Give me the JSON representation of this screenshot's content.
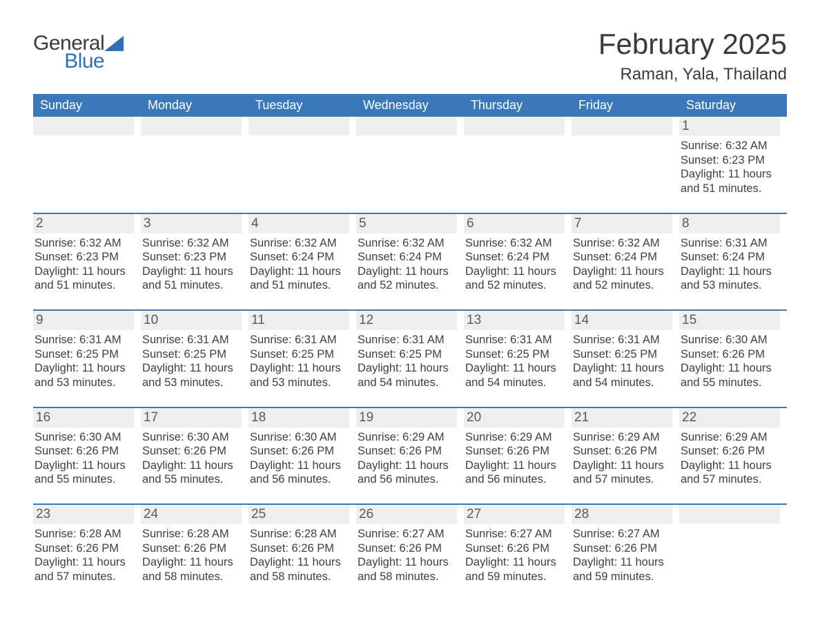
{
  "logo": {
    "word1": "General",
    "word2": "Blue"
  },
  "title": "February 2025",
  "location": "Raman, Yala, Thailand",
  "colors": {
    "header_bg": "#3b78b9",
    "header_text": "#ffffff",
    "daynum_bg": "#eeeeee",
    "text": "#3a3a3a",
    "accent": "#2e6fb5",
    "border": "#3b78b9"
  },
  "dow": [
    "Sunday",
    "Monday",
    "Tuesday",
    "Wednesday",
    "Thursday",
    "Friday",
    "Saturday"
  ],
  "weeks": [
    [
      {
        "n": "",
        "sunrise": "",
        "sunset": "",
        "daylight": ""
      },
      {
        "n": "",
        "sunrise": "",
        "sunset": "",
        "daylight": ""
      },
      {
        "n": "",
        "sunrise": "",
        "sunset": "",
        "daylight": ""
      },
      {
        "n": "",
        "sunrise": "",
        "sunset": "",
        "daylight": ""
      },
      {
        "n": "",
        "sunrise": "",
        "sunset": "",
        "daylight": ""
      },
      {
        "n": "",
        "sunrise": "",
        "sunset": "",
        "daylight": ""
      },
      {
        "n": "1",
        "sunrise": "Sunrise: 6:32 AM",
        "sunset": "Sunset: 6:23 PM",
        "daylight": "Daylight: 11 hours and 51 minutes."
      }
    ],
    [
      {
        "n": "2",
        "sunrise": "Sunrise: 6:32 AM",
        "sunset": "Sunset: 6:23 PM",
        "daylight": "Daylight: 11 hours and 51 minutes."
      },
      {
        "n": "3",
        "sunrise": "Sunrise: 6:32 AM",
        "sunset": "Sunset: 6:23 PM",
        "daylight": "Daylight: 11 hours and 51 minutes."
      },
      {
        "n": "4",
        "sunrise": "Sunrise: 6:32 AM",
        "sunset": "Sunset: 6:24 PM",
        "daylight": "Daylight: 11 hours and 51 minutes."
      },
      {
        "n": "5",
        "sunrise": "Sunrise: 6:32 AM",
        "sunset": "Sunset: 6:24 PM",
        "daylight": "Daylight: 11 hours and 52 minutes."
      },
      {
        "n": "6",
        "sunrise": "Sunrise: 6:32 AM",
        "sunset": "Sunset: 6:24 PM",
        "daylight": "Daylight: 11 hours and 52 minutes."
      },
      {
        "n": "7",
        "sunrise": "Sunrise: 6:32 AM",
        "sunset": "Sunset: 6:24 PM",
        "daylight": "Daylight: 11 hours and 52 minutes."
      },
      {
        "n": "8",
        "sunrise": "Sunrise: 6:31 AM",
        "sunset": "Sunset: 6:24 PM",
        "daylight": "Daylight: 11 hours and 53 minutes."
      }
    ],
    [
      {
        "n": "9",
        "sunrise": "Sunrise: 6:31 AM",
        "sunset": "Sunset: 6:25 PM",
        "daylight": "Daylight: 11 hours and 53 minutes."
      },
      {
        "n": "10",
        "sunrise": "Sunrise: 6:31 AM",
        "sunset": "Sunset: 6:25 PM",
        "daylight": "Daylight: 11 hours and 53 minutes."
      },
      {
        "n": "11",
        "sunrise": "Sunrise: 6:31 AM",
        "sunset": "Sunset: 6:25 PM",
        "daylight": "Daylight: 11 hours and 53 minutes."
      },
      {
        "n": "12",
        "sunrise": "Sunrise: 6:31 AM",
        "sunset": "Sunset: 6:25 PM",
        "daylight": "Daylight: 11 hours and 54 minutes."
      },
      {
        "n": "13",
        "sunrise": "Sunrise: 6:31 AM",
        "sunset": "Sunset: 6:25 PM",
        "daylight": "Daylight: 11 hours and 54 minutes."
      },
      {
        "n": "14",
        "sunrise": "Sunrise: 6:31 AM",
        "sunset": "Sunset: 6:25 PM",
        "daylight": "Daylight: 11 hours and 54 minutes."
      },
      {
        "n": "15",
        "sunrise": "Sunrise: 6:30 AM",
        "sunset": "Sunset: 6:26 PM",
        "daylight": "Daylight: 11 hours and 55 minutes."
      }
    ],
    [
      {
        "n": "16",
        "sunrise": "Sunrise: 6:30 AM",
        "sunset": "Sunset: 6:26 PM",
        "daylight": "Daylight: 11 hours and 55 minutes."
      },
      {
        "n": "17",
        "sunrise": "Sunrise: 6:30 AM",
        "sunset": "Sunset: 6:26 PM",
        "daylight": "Daylight: 11 hours and 55 minutes."
      },
      {
        "n": "18",
        "sunrise": "Sunrise: 6:30 AM",
        "sunset": "Sunset: 6:26 PM",
        "daylight": "Daylight: 11 hours and 56 minutes."
      },
      {
        "n": "19",
        "sunrise": "Sunrise: 6:29 AM",
        "sunset": "Sunset: 6:26 PM",
        "daylight": "Daylight: 11 hours and 56 minutes."
      },
      {
        "n": "20",
        "sunrise": "Sunrise: 6:29 AM",
        "sunset": "Sunset: 6:26 PM",
        "daylight": "Daylight: 11 hours and 56 minutes."
      },
      {
        "n": "21",
        "sunrise": "Sunrise: 6:29 AM",
        "sunset": "Sunset: 6:26 PM",
        "daylight": "Daylight: 11 hours and 57 minutes."
      },
      {
        "n": "22",
        "sunrise": "Sunrise: 6:29 AM",
        "sunset": "Sunset: 6:26 PM",
        "daylight": "Daylight: 11 hours and 57 minutes."
      }
    ],
    [
      {
        "n": "23",
        "sunrise": "Sunrise: 6:28 AM",
        "sunset": "Sunset: 6:26 PM",
        "daylight": "Daylight: 11 hours and 57 minutes."
      },
      {
        "n": "24",
        "sunrise": "Sunrise: 6:28 AM",
        "sunset": "Sunset: 6:26 PM",
        "daylight": "Daylight: 11 hours and 58 minutes."
      },
      {
        "n": "25",
        "sunrise": "Sunrise: 6:28 AM",
        "sunset": "Sunset: 6:26 PM",
        "daylight": "Daylight: 11 hours and 58 minutes."
      },
      {
        "n": "26",
        "sunrise": "Sunrise: 6:27 AM",
        "sunset": "Sunset: 6:26 PM",
        "daylight": "Daylight: 11 hours and 58 minutes."
      },
      {
        "n": "27",
        "sunrise": "Sunrise: 6:27 AM",
        "sunset": "Sunset: 6:26 PM",
        "daylight": "Daylight: 11 hours and 59 minutes."
      },
      {
        "n": "28",
        "sunrise": "Sunrise: 6:27 AM",
        "sunset": "Sunset: 6:26 PM",
        "daylight": "Daylight: 11 hours and 59 minutes."
      },
      {
        "n": "",
        "sunrise": "",
        "sunset": "",
        "daylight": ""
      }
    ]
  ]
}
